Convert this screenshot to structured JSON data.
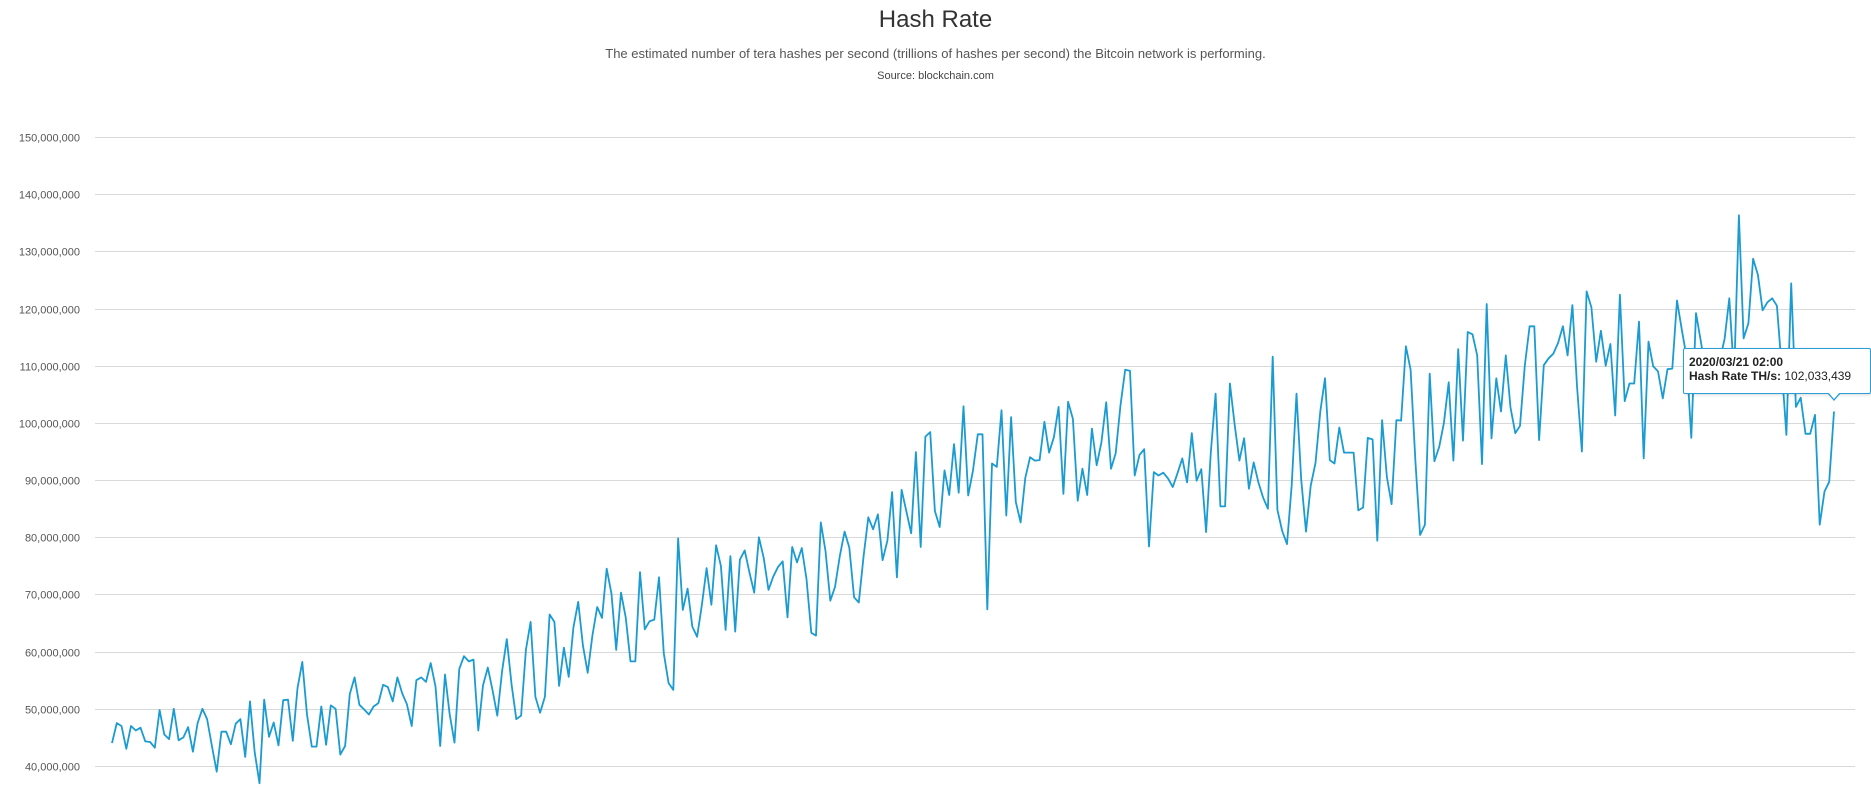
{
  "header": {
    "title": "Hash Rate",
    "subtitle": "The estimated number of tera hashes per second (trillions of hashes per second) the Bitcoin network is performing.",
    "source": "Source: blockchain.com"
  },
  "tooltip": {
    "date": "2020/03/21 02:00",
    "series_label": "Hash Rate TH/s:",
    "value": "102,033,439"
  },
  "colors": {
    "line": "#1a9bd1",
    "grid": "#d9d9d9",
    "tooltip_border": "#2a9fd6"
  },
  "chart_data": {
    "type": "line",
    "title": "Hash Rate",
    "ylabel": "",
    "ylim": [
      38000000,
      150000000
    ],
    "yticks": [
      150000000,
      140000000,
      130000000,
      120000000,
      110000000,
      100000000,
      90000000,
      80000000,
      70000000,
      60000000,
      50000000,
      40000000
    ],
    "ytick_labels": [
      "150,000,000",
      "140,000,000",
      "130,000,000",
      "120,000,000",
      "110,000,000",
      "100,000,000",
      "90,000,000",
      "80,000,000",
      "70,000,000",
      "60,000,000",
      "50,000,000",
      "40,000,000"
    ],
    "grid": true,
    "legend": "none",
    "series": [
      {
        "values": [
          44000000,
          47500000,
          47000000,
          43000000,
          47000000,
          46200000,
          46700000,
          44300000,
          44200000,
          43200000,
          49800000,
          45500000,
          44700000,
          50000000,
          44500000,
          45000000,
          46800000,
          42500000,
          47500000,
          50000000,
          48200000,
          43500000,
          39000000,
          46000000,
          46000000,
          43800000,
          47400000,
          48200000,
          41600000,
          51300000,
          42400000,
          37000000,
          51600000,
          45100000,
          47600000,
          43600000,
          51500000,
          51600000,
          44400000,
          53600000,
          58200000,
          49000000,
          43400000,
          43400000,
          50400000,
          43700000,
          50600000,
          50000000,
          42000000,
          43500000,
          52600000,
          55500000,
          50700000,
          49900000,
          49000000,
          50400000,
          51000000,
          54200000,
          53800000,
          51300000,
          55500000,
          52700000,
          50800000,
          47000000,
          55000000,
          55500000,
          54700000,
          58000000,
          53900000,
          43500000,
          56000000,
          49000000,
          44100000,
          57000000,
          59200000,
          58300000,
          58600000,
          46200000,
          54100000,
          57200000,
          53200000,
          48800000,
          56600000,
          62200000,
          54200000,
          48200000,
          48800000,
          60300000,
          65200000,
          52100000,
          49300000,
          52100000,
          66500000,
          65200000,
          54000000,
          60700000,
          55600000,
          64200000,
          68700000,
          61100000,
          56300000,
          62800000,
          67800000,
          65900000,
          74500000,
          70100000,
          60300000,
          70300000,
          66000000,
          58300000,
          58300000,
          73900000,
          63900000,
          65300000,
          65600000,
          73000000,
          59700000,
          54500000,
          53300000,
          79800000,
          67300000,
          71000000,
          64400000,
          62600000,
          68200000,
          74600000,
          68200000,
          78600000,
          75000000,
          63800000,
          76700000,
          63500000,
          76100000,
          77700000,
          73900000,
          70300000,
          80000000,
          76400000,
          70800000,
          73100000,
          74800000,
          75800000,
          66000000,
          78300000,
          75600000,
          78100000,
          72700000,
          63300000,
          62800000,
          82600000,
          77600000,
          68900000,
          71300000,
          76700000,
          81000000,
          78200000,
          69500000,
          68600000,
          76700000,
          83500000,
          81400000,
          84000000,
          76000000,
          79400000,
          87900000,
          73000000,
          88300000,
          84500000,
          80700000,
          94900000,
          78300000,
          97600000,
          98400000,
          84600000,
          81800000,
          91700000,
          87400000,
          96300000,
          87800000,
          102900000,
          87300000,
          91700000,
          98000000,
          98000000,
          67400000,
          92900000,
          92300000,
          102200000,
          83800000,
          101000000,
          86200000,
          82600000,
          90400000,
          94000000,
          93400000,
          93500000,
          100200000,
          94800000,
          97500000,
          102800000,
          87600000,
          103700000,
          100700000,
          86400000,
          92000000,
          87400000,
          99000000,
          92600000,
          96600000,
          103600000,
          92000000,
          94700000,
          103100000,
          109300000,
          109100000,
          90800000,
          94400000,
          95400000,
          78400000,
          91400000,
          90800000,
          91300000,
          90300000,
          88800000,
          91200000,
          93800000,
          89600000,
          98200000,
          89900000,
          91900000,
          80900000,
          94800000,
          105100000,
          85400000,
          85400000,
          106900000,
          99800000,
          93400000,
          97300000,
          88500000,
          93100000,
          89600000,
          86900000,
          85000000,
          111600000,
          84800000,
          81100000,
          78800000,
          89100000,
          105100000,
          90100000,
          81000000,
          89000000,
          93000000,
          102000000,
          107800000,
          93500000,
          92900000,
          99200000,
          94800000,
          94800000,
          94800000,
          84700000,
          85200000,
          97400000,
          97100000,
          79400000,
          100500000,
          90500000,
          85800000,
          100500000,
          100400000,
          113400000,
          109300000,
          93300000,
          80400000,
          82200000,
          108600000,
          93300000,
          95800000,
          100000000,
          107100000,
          93400000,
          112900000,
          96900000,
          115900000,
          115500000,
          111800000,
          92800000,
          120800000,
          97300000,
          107800000,
          102000000,
          111800000,
          102700000,
          98200000,
          99500000,
          110000000,
          116900000,
          116900000,
          97000000,
          110100000,
          111300000,
          112100000,
          114000000,
          116900000,
          111800000,
          120600000,
          106200000,
          95000000,
          123000000,
          120200000,
          110700000,
          116100000,
          110000000,
          113800000,
          101300000,
          122400000,
          103800000,
          106900000,
          106900000,
          117700000,
          93800000,
          114200000,
          109900000,
          109000000,
          104300000,
          109400000,
          109500000,
          121400000,
          116300000,
          111600000,
          97400000,
          119200000,
          114300000,
          109100000,
          109100000,
          108300000,
          111000000,
          114700000,
          121800000,
          108100000,
          136300000,
          114800000,
          117400000,
          128700000,
          125900000,
          119700000,
          121100000,
          121800000,
          120500000,
          109700000,
          97900000,
          124400000,
          102800000,
          104400000,
          98100000,
          98100000,
          101400000,
          82200000,
          88000000,
          89700000,
          102000000
        ]
      }
    ]
  }
}
